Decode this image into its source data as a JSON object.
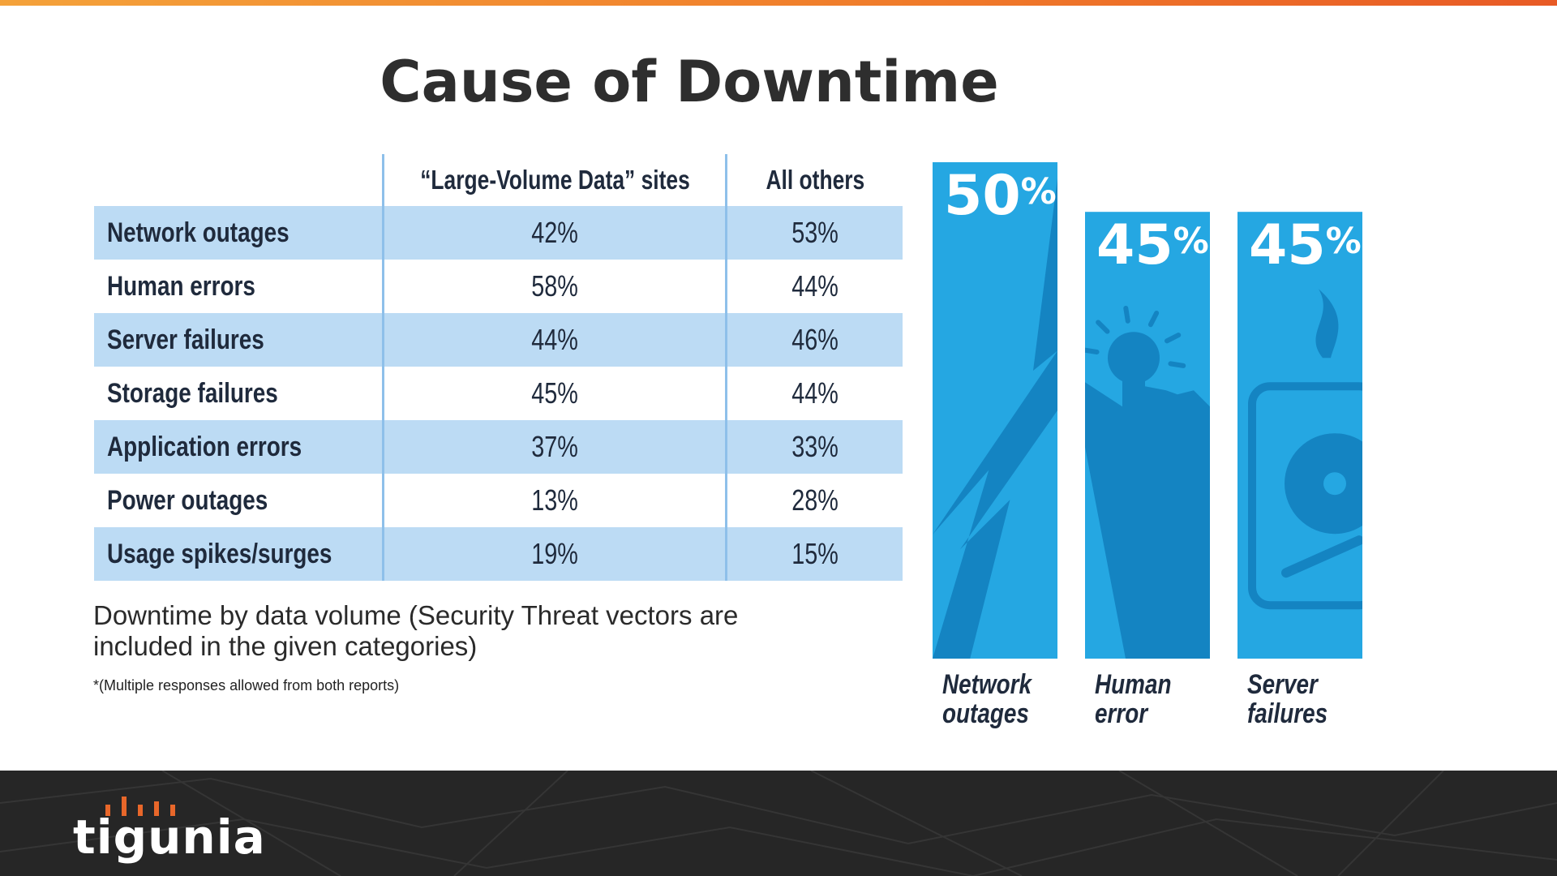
{
  "title": "Cause of Downtime",
  "table": {
    "columns": [
      "",
      "“Large-Volume Data” sites",
      "All others"
    ],
    "rows": [
      {
        "label": "Network outages",
        "large": "42%",
        "others": "53%"
      },
      {
        "label": "Human errors",
        "large": "58%",
        "others": "44%"
      },
      {
        "label": "Server failures",
        "large": "44%",
        "others": "46%"
      },
      {
        "label": "Storage failures",
        "large": "45%",
        "others": "44%"
      },
      {
        "label": "Application errors",
        "large": "37%",
        "others": "33%"
      },
      {
        "label": "Power outages",
        "large": "13%",
        "others": "28%"
      },
      {
        "label": "Usage spikes/surges",
        "large": "19%",
        "others": "15%"
      }
    ]
  },
  "caption": "Downtime by data volume (Security Threat vectors are included in the given categories)",
  "footnote": "*(Multiple responses allowed from both reports)",
  "colors": {
    "bar": "#25a7e2",
    "bar_dark": "#1484c2",
    "row_shade": "#bcdbf4",
    "accent": "#f07a2a",
    "footer": "#262626"
  },
  "chart_data": {
    "type": "bar",
    "categories": [
      "Network outages",
      "Human error",
      "Server failures"
    ],
    "values": [
      50,
      45,
      45
    ],
    "value_labels": [
      "50",
      "45",
      "45"
    ],
    "unit": "%",
    "label_lines": [
      [
        "Network",
        "outages"
      ],
      [
        "Human",
        "error"
      ],
      [
        "Server",
        "failures"
      ]
    ],
    "icons": [
      "lightning-icon",
      "hand-touch-icon",
      "hard-drive-icon"
    ]
  },
  "footer": {
    "logo_text": "tigunia"
  }
}
